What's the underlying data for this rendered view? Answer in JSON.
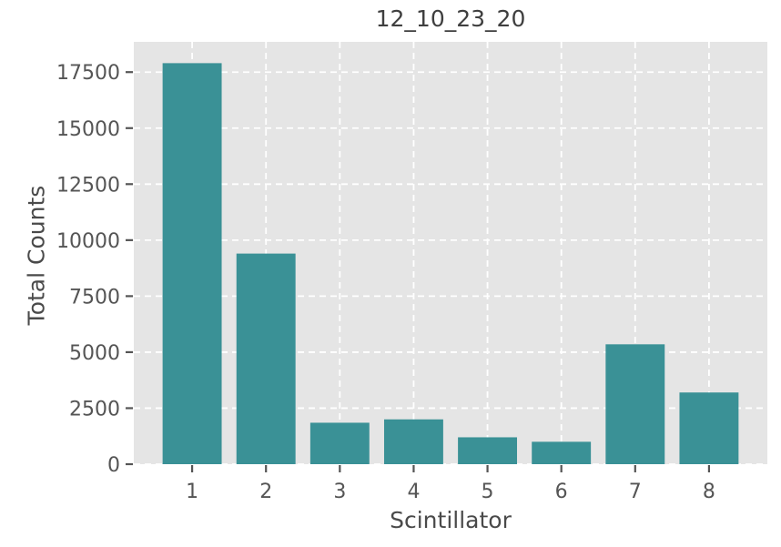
{
  "figure": {
    "title": "12_10_23_20",
    "xlabel": "Scintillator",
    "ylabel": "Total Counts"
  },
  "chart_data": {
    "type": "bar",
    "title": "12_10_23_20",
    "xlabel": "Scintillator",
    "ylabel": "Total Counts",
    "categories": [
      "1",
      "2",
      "3",
      "4",
      "5",
      "6",
      "7",
      "8"
    ],
    "values": [
      17900,
      9400,
      1850,
      2000,
      1200,
      1000,
      5350,
      3200
    ],
    "yticks": [
      0,
      2500,
      5000,
      7500,
      10000,
      12500,
      15000,
      17500
    ],
    "ylim": [
      0,
      18850
    ],
    "grid": true,
    "grid_linestyle": "dashed",
    "legend": "none",
    "bar_width_fraction": 0.8,
    "colors": {
      "bar": "#3A9196",
      "plot_background": "#E5E5E5",
      "grid": "#FFFFFF",
      "tick_text": "#555555",
      "tick_mark": "#555555",
      "figure_background": "#FFFFFF"
    }
  }
}
